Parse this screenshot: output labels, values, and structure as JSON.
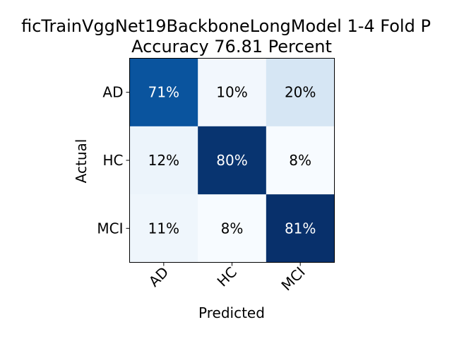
{
  "chart_data": {
    "type": "heatmap",
    "title_line1": "ficTrainVggNet19BackboneLongModel 1-4 Fold P",
    "title_line2": "Accuracy 76.81 Percent",
    "xlabel": "Predicted",
    "ylabel": "Actual",
    "x_categories": [
      "AD",
      "HC",
      "MCI"
    ],
    "y_categories": [
      "AD",
      "HC",
      "MCI"
    ],
    "values": [
      [
        71,
        10,
        20
      ],
      [
        12,
        80,
        8
      ],
      [
        11,
        8,
        81
      ]
    ],
    "labels": [
      [
        "71%",
        "10%",
        "20%"
      ],
      [
        "12%",
        "80%",
        "8%"
      ],
      [
        "11%",
        "8%",
        "81%"
      ]
    ],
    "colormap": "Blues",
    "grid": false
  }
}
